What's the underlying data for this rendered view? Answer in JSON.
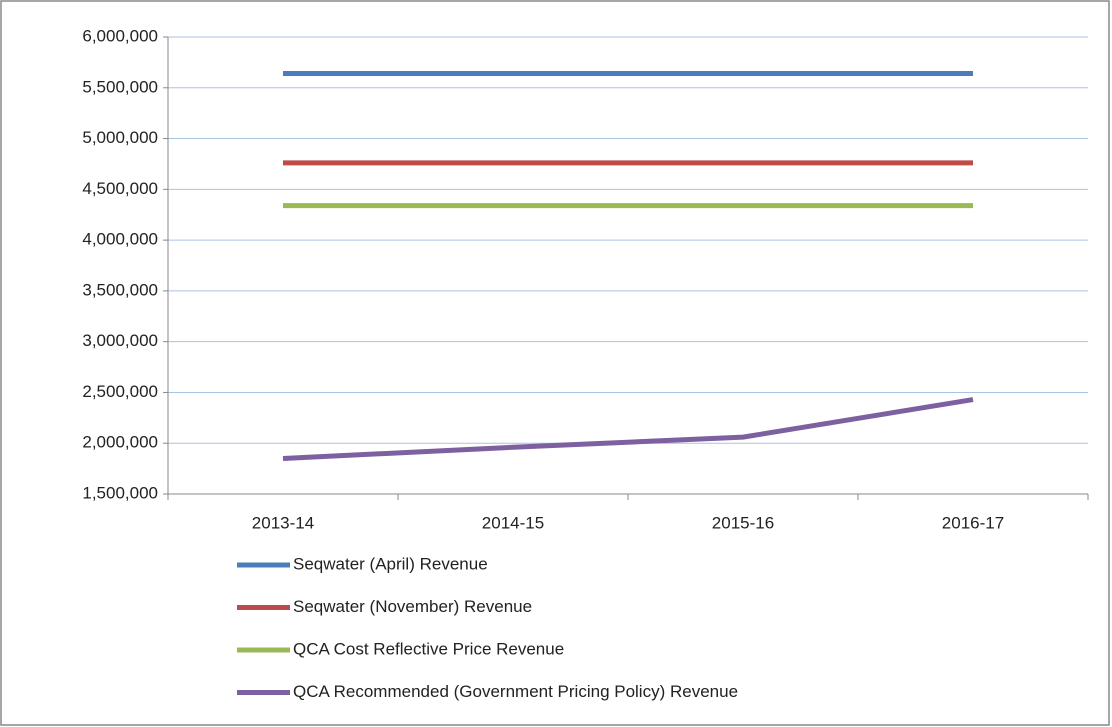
{
  "chart_data": {
    "type": "line",
    "categories": [
      "2013-14",
      "2014-15",
      "2015-16",
      "2016-17"
    ],
    "series": [
      {
        "name": "Seqwater (April) Revenue",
        "color": "#4a7ebb",
        "values": [
          5640000,
          5640000,
          5640000,
          5640000
        ]
      },
      {
        "name": "Seqwater (November) Revenue",
        "color": "#be4b48",
        "values": [
          4760000,
          4760000,
          4760000,
          4760000
        ]
      },
      {
        "name": "QCA Cost Reflective Price Revenue",
        "color": "#98b954",
        "values": [
          4340000,
          4340000,
          4340000,
          4340000
        ]
      },
      {
        "name": "QCA Recommended (Government Pricing Policy) Revenue",
        "color": "#7d60a0",
        "values": [
          1850000,
          1960000,
          2060000,
          2430000
        ]
      }
    ],
    "ylim": [
      1500000,
      6000000
    ],
    "yticks": [
      {
        "value": 1500000,
        "label": "1,500,000"
      },
      {
        "value": 2000000,
        "label": "2,000,000"
      },
      {
        "value": 2500000,
        "label": "2,500,000"
      },
      {
        "value": 3000000,
        "label": "3,000,000"
      },
      {
        "value": 3500000,
        "label": "3,500,000"
      },
      {
        "value": 4000000,
        "label": "4,000,000"
      },
      {
        "value": 4500000,
        "label": "4,500,000"
      },
      {
        "value": 5000000,
        "label": "5,000,000"
      },
      {
        "value": 5500000,
        "label": "5,500,000"
      },
      {
        "value": 6000000,
        "label": "6,000,000"
      }
    ],
    "grid": true,
    "legend": "bottom"
  }
}
